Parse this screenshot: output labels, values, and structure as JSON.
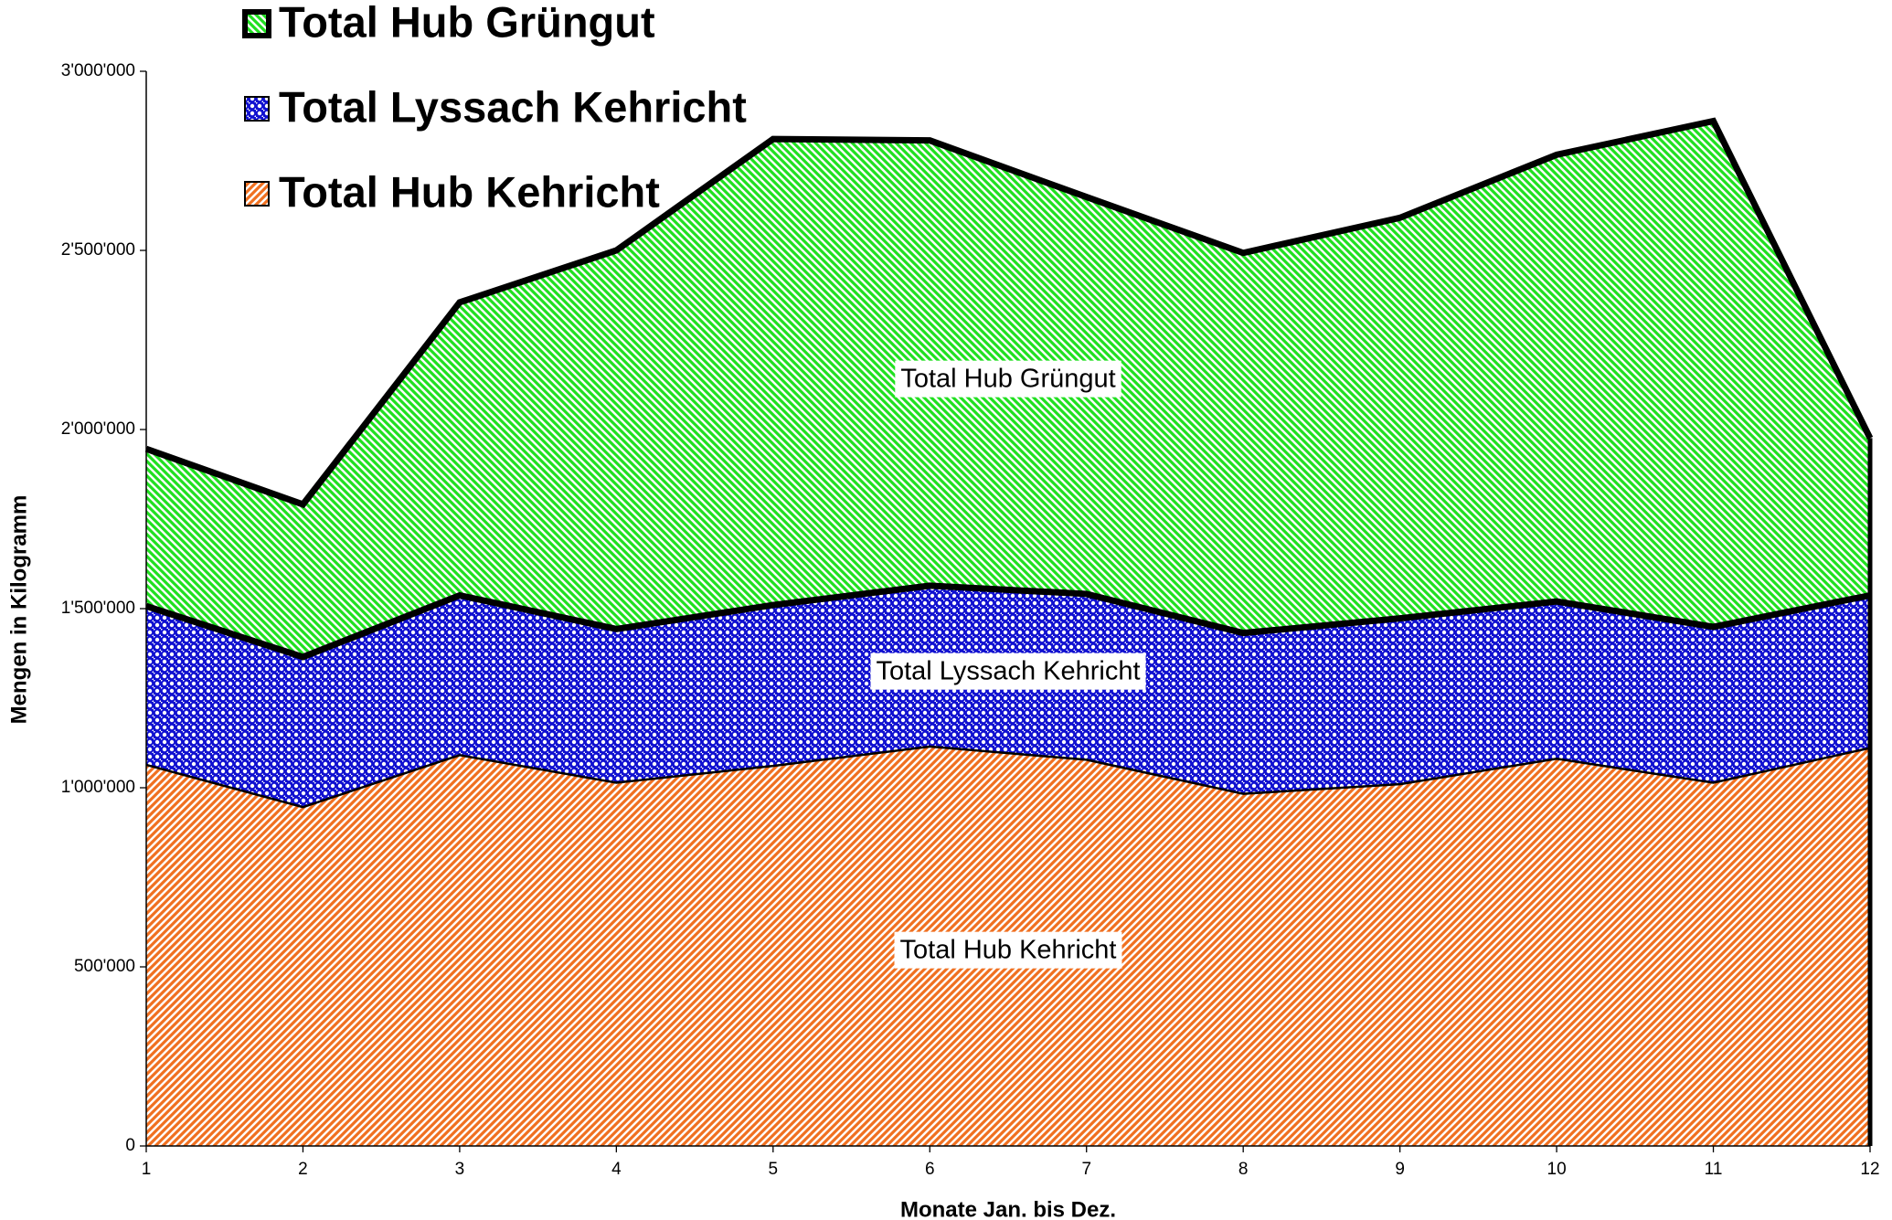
{
  "chart_data": {
    "type": "stacked_area",
    "x_label": "Monate Jan. bis Dez.",
    "y_label": "Mengen in Kilogramm",
    "x": [
      1,
      2,
      3,
      4,
      5,
      6,
      7,
      8,
      9,
      10,
      11,
      12
    ],
    "xlim": [
      1,
      12
    ],
    "xticks": [
      1,
      2,
      3,
      4,
      5,
      6,
      7,
      8,
      9,
      10,
      11,
      12
    ],
    "ylim": [
      0,
      3000000
    ],
    "yticks": [
      0,
      {
        "value": 500000,
        "label": "500'000"
      },
      {
        "value": 1000000,
        "label": "1'000'000"
      },
      {
        "value": 1500000,
        "label": "1'500'000"
      },
      {
        "value": 2000000,
        "label": "2'000'000"
      },
      {
        "value": 2500000,
        "label": "2'500'000"
      },
      {
        "value": 3000000,
        "label": "3'000'000"
      }
    ],
    "series": [
      {
        "name": "Total Hub Kehricht",
        "color": "#f07020",
        "values": [
          1064000,
          946000,
          1091000,
          1014000,
          1061000,
          1115000,
          1078000,
          983000,
          1010000,
          1081000,
          1014000,
          1111000
        ]
      },
      {
        "name": "Total Lyssach Kehricht",
        "color": "#1010d0",
        "values": [
          443000,
          419000,
          446000,
          429000,
          449000,
          449000,
          463000,
          449000,
          463000,
          439000,
          435000,
          426000
        ]
      },
      {
        "name": "Total Hub Grüngut",
        "color": "#20e020",
        "values": [
          439000,
          426000,
          818000,
          1057000,
          1301000,
          1243000,
          1108000,
          1061000,
          1118000,
          1247000,
          1412000,
          439000
        ]
      }
    ]
  }
}
